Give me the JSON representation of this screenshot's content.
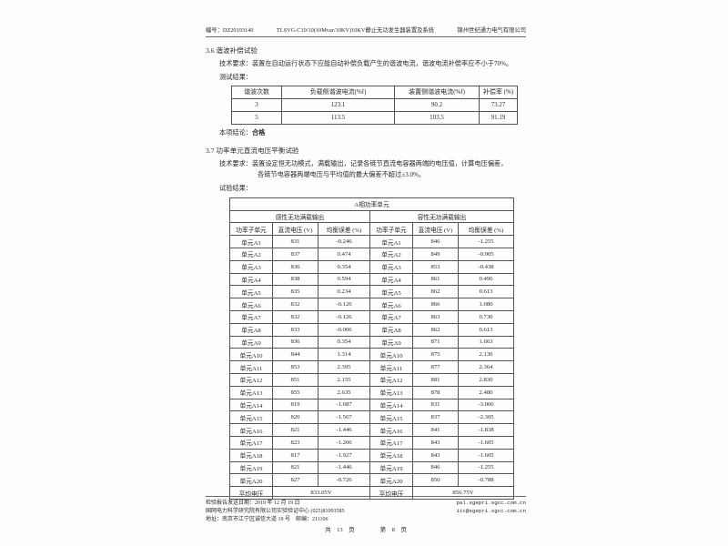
{
  "colors": {
    "ink": "#2a2a2a",
    "table_border": "#555555",
    "paper": "#fefefe"
  },
  "page_header": {
    "doc_no": "编号：DZ20193140",
    "title": "TLSVG-C10/10(10Mvar/10KV)10KV静止无功发生器装置及系统",
    "company": "锦州世纪通力电气有限公司"
  },
  "section_36": {
    "heading": "3.6 谐波补偿试验",
    "requirement": "技术要求：装置在自动运行状态下应能自动补偿负载产生的谐波电流，谐波电流补偿率应不小于70%。",
    "results_label": "测试结果：",
    "table": {
      "headers": [
        "谐波次数",
        "负载侧谐波电流(%f)",
        "装置侧谐波电流(%f)",
        "补偿率 (%)"
      ],
      "rows": [
        [
          "3",
          "123.1",
          "90.2",
          "73.27"
        ],
        [
          "5",
          "113.5",
          "103.5",
          "91.19"
        ]
      ]
    },
    "conclusion_label": "本项结论：",
    "conclusion": "合格"
  },
  "section_37": {
    "heading": "3.7 功率单元直流电压平衡试验",
    "requirement_line1": "技术要求：装置设定恒无功模式，满载输出，记录各链节直流电容器两端的电压值，计算电压偏差，",
    "requirement_line2": "各链节电容器两端电压与平均值的最大偏差不超过±3.0%。",
    "results_label": "试验结果：",
    "table": {
      "title": "A相功率单元",
      "group_headers": [
        "感性无功满载输出",
        "容性无功满载输出"
      ],
      "col_headers": [
        "功率子单元",
        "直流电压 (V)",
        "均衡误差 (%)",
        "功率子单元",
        "直流电压 (V)",
        "均衡误差 (%)"
      ],
      "rows": [
        [
          "单元A1",
          "831",
          "-0.246",
          "单元A1",
          "846",
          "-1.255"
        ],
        [
          "单元A2",
          "837",
          "0.474",
          "单元A2",
          "849",
          "-0.905"
        ],
        [
          "单元A3",
          "836",
          "0.354",
          "单元A3",
          "853",
          "-0.438"
        ],
        [
          "单元A4",
          "838",
          "0.594",
          "单元A4",
          "861",
          "0.496"
        ],
        [
          "单元A5",
          "835",
          "0.234",
          "单元A5",
          "862",
          "0.613"
        ],
        [
          "单元A6",
          "832",
          "-0.126",
          "单元A6",
          "866",
          "1.080"
        ],
        [
          "单元A7",
          "832",
          "-0.126",
          "单元A7",
          "863",
          "0.730"
        ],
        [
          "单元A8",
          "833",
          "-0.006",
          "单元A8",
          "862",
          "0.613"
        ],
        [
          "单元A9",
          "836",
          "0.354",
          "单元A9",
          "871",
          "1.663"
        ],
        [
          "单元A10",
          "844",
          "1.314",
          "单元A10",
          "875",
          "2.130"
        ],
        [
          "单元A11",
          "853",
          "2.395",
          "单元A11",
          "877",
          "2.364"
        ],
        [
          "单元A12",
          "851",
          "2.155",
          "单元A12",
          "881",
          "2.830"
        ],
        [
          "单元A13",
          "855",
          "2.635",
          "单元A13",
          "878",
          "2.480"
        ],
        [
          "单元A14",
          "819",
          "-1.687",
          "单元A14",
          "831",
          "-3.006"
        ],
        [
          "单元A15",
          "820",
          "-1.567",
          "单元A15",
          "837",
          "-2.305"
        ],
        [
          "单元A16",
          "821",
          "-1.446",
          "单元A16",
          "841",
          "-1.838"
        ],
        [
          "单元A17",
          "823",
          "-1.206",
          "单元A17",
          "843",
          "-1.605"
        ],
        [
          "单元A18",
          "817",
          "-1.927",
          "单元A18",
          "843",
          "-1.605"
        ],
        [
          "单元A19",
          "821",
          "-1.446",
          "单元A19",
          "846",
          "-1.255"
        ],
        [
          "单元A20",
          "827",
          "-0.726",
          "单元A20",
          "850",
          "-0.788"
        ]
      ],
      "avg_label": "平均电压",
      "avg_inductive": "833.05V",
      "avg_capacitive": "856.75V"
    }
  },
  "footer": {
    "report_date": "检验报告发送日期：2019 年 12 月 19 日",
    "org_line": "国网电力科学研究院有限公司实验验证中心 (025)81093585",
    "address_line": "地址：南京市江宁区诚信大道 19 号　邮编：211106",
    "web1": "pal.sgepri.sgcc.com.cn",
    "web2": "itc@sgepri.sgcc.com.cn",
    "total_pages": "共　13　页",
    "current_page": "第　8　页"
  }
}
